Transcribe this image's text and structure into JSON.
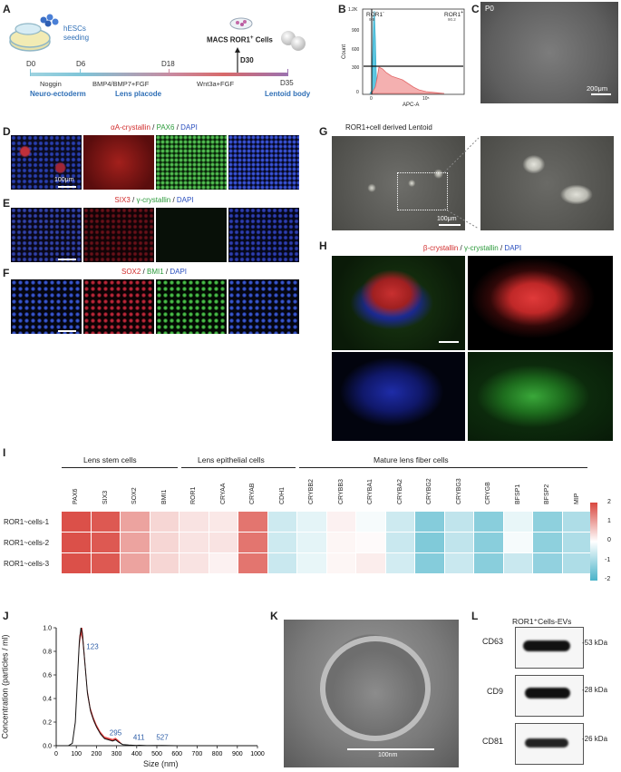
{
  "panels": [
    "A",
    "B",
    "C",
    "D",
    "E",
    "F",
    "G",
    "H",
    "I",
    "J",
    "K",
    "L"
  ],
  "A": {
    "hesc_label_1": "hESCs",
    "hesc_label_2": "seeding",
    "macs_label": "MACS ROR1",
    "macs_sup": "+",
    "macs_tail": " Cells",
    "d30": "D30",
    "days": [
      "D0",
      "D6",
      "D18",
      "D35"
    ],
    "factors": [
      "Noggin",
      "BMP4/BMP7+FGF",
      "Wnt3a+FGF"
    ],
    "stages": [
      "Neuro-ectoderm",
      "Lens placode",
      "Lentoid body"
    ],
    "colors": {
      "track_start": "#7fc5d8",
      "track_mid": "#c98aa0",
      "track_end": "#9b72b0",
      "stage": "#2f6fb6",
      "arrow": "#222222"
    }
  },
  "B": {
    "neg_label": "ROR1",
    "neg_sup": "-",
    "pos_label": "ROR1",
    "pos_sup": "+",
    "neg_pct": "9.8",
    "pos_pct": "90.2",
    "y_ticks": [
      "1.2K",
      "900",
      "600",
      "300",
      "0"
    ],
    "ylabel": "Count",
    "xlabel": "APC-A",
    "x_ticks": [
      "0",
      "10⁵"
    ],
    "colors": {
      "neg": "#5bc6e0",
      "pos": "#e36a6a"
    }
  },
  "C": {
    "tag": "P0",
    "scale": "200μm"
  },
  "D": {
    "title_parts": [
      {
        "text": "αA-crystallin",
        "color": "#d12b2b"
      },
      {
        "text": " / ",
        "color": "#222222"
      },
      {
        "text": "PAX6",
        "color": "#2a9a3a"
      },
      {
        "text": " / ",
        "color": "#222222"
      },
      {
        "text": "DAPI",
        "color": "#2a4fbf"
      }
    ],
    "scale": "100μm"
  },
  "E": {
    "title_parts": [
      {
        "text": "SIX3",
        "color": "#d12b2b"
      },
      {
        "text": " / ",
        "color": "#222222"
      },
      {
        "text": "γ-crystallin",
        "color": "#2a9a3a"
      },
      {
        "text": " / ",
        "color": "#222222"
      },
      {
        "text": "DAPI",
        "color": "#2a4fbf"
      }
    ]
  },
  "F": {
    "title_parts": [
      {
        "text": "SOX2",
        "color": "#d12b2b"
      },
      {
        "text": " / ",
        "color": "#222222"
      },
      {
        "text": "BMI1",
        "color": "#2a9a3a"
      },
      {
        "text": " / ",
        "color": "#222222"
      },
      {
        "text": "DAPI",
        "color": "#2a4fbf"
      }
    ]
  },
  "G": {
    "title": "ROR1+cell derived Lentoid",
    "scale": "100μm"
  },
  "H": {
    "title_parts": [
      {
        "text": "β-crystallin",
        "color": "#d12b2b"
      },
      {
        "text": " / ",
        "color": "#222222"
      },
      {
        "text": "γ-crystallin",
        "color": "#2a9a3a"
      },
      {
        "text": " / ",
        "color": "#222222"
      },
      {
        "text": "DAPI",
        "color": "#2a4fbf"
      }
    ]
  },
  "I": {
    "groups": [
      "Lens stem cells",
      "Lens epithelial cells",
      "Mature lens fiber cells"
    ],
    "genes": [
      "PAX6",
      "SIX3",
      "SOX2",
      "BMI1",
      "ROR1",
      "CRYAA",
      "CRYAB",
      "CDH1",
      "CRYBB2",
      "CRYBB3",
      "CRYBA1",
      "CRYBA2",
      "CRYBG2",
      "CRYBG3",
      "CRYGB",
      "BFSP1",
      "BFSP2",
      "MIP"
    ],
    "rows": [
      "ROR1~cells-1",
      "ROR1~cells-2",
      "ROR1~cells-3"
    ],
    "values": [
      [
        1.9,
        1.8,
        1.0,
        0.45,
        0.3,
        0.25,
        1.5,
        -0.55,
        -0.3,
        0.15,
        -0.1,
        -0.55,
        -1.35,
        -0.7,
        -1.3,
        -0.25,
        -1.25,
        -0.9
      ],
      [
        1.9,
        1.8,
        1.0,
        0.45,
        0.3,
        0.3,
        1.5,
        -0.55,
        -0.3,
        0.1,
        0.05,
        -0.6,
        -1.4,
        -0.7,
        -1.3,
        -0.1,
        -1.25,
        -0.9
      ],
      [
        1.9,
        1.8,
        1.0,
        0.45,
        0.3,
        0.15,
        1.5,
        -0.6,
        -0.25,
        0.1,
        0.2,
        -0.5,
        -1.35,
        -0.6,
        -1.3,
        -0.6,
        -1.2,
        -0.9
      ]
    ],
    "legend_ticks": [
      "2",
      "1",
      "0",
      "-1",
      "-2"
    ],
    "colors": {
      "high": "#d9473f",
      "mid": "#ffffff",
      "low": "#4ab3c9"
    }
  },
  "chart_data": {
    "type": "line",
    "ylabel": "Concentration (particles / ml)",
    "xlabel": "Size (nm)",
    "xlim": [
      0,
      1000
    ],
    "ylim": [
      0,
      1.0
    ],
    "x_ticks": [
      "0",
      "100",
      "200",
      "300",
      "400",
      "500",
      "600",
      "700",
      "800",
      "900",
      "1000"
    ],
    "y_ticks": [
      "0.0",
      "0.2",
      "0.4",
      "0.6",
      "0.8",
      "1.0"
    ],
    "annotations": [
      "123",
      "295",
      "411",
      "527"
    ],
    "series": [
      {
        "x": [
          0,
          60,
          80,
          95,
          105,
          115,
          123,
          130,
          140,
          155,
          170,
          185,
          200,
          220,
          240,
          260,
          280,
          295,
          310,
          330,
          360,
          400,
          411,
          450,
          527,
          600,
          700,
          800,
          900,
          1000
        ],
        "y": [
          0,
          0,
          0.02,
          0.2,
          0.55,
          0.88,
          1.0,
          0.95,
          0.75,
          0.45,
          0.3,
          0.22,
          0.16,
          0.1,
          0.06,
          0.05,
          0.04,
          0.05,
          0.03,
          0.01,
          0.005,
          0.002,
          0.004,
          0.001,
          0.002,
          0,
          0,
          0,
          0,
          0
        ]
      }
    ],
    "colors": {
      "line": "#111111",
      "band": "#e02020",
      "annotation": "#2f5fa8"
    }
  },
  "K": {
    "scale": "100nm"
  },
  "L": {
    "title": "ROR1⁺Cells-EVs",
    "markers": [
      "CD63",
      "CD9",
      "CD81"
    ],
    "sizes": [
      "-53 kDa",
      "-28 kDa",
      "-26 kDa"
    ]
  }
}
